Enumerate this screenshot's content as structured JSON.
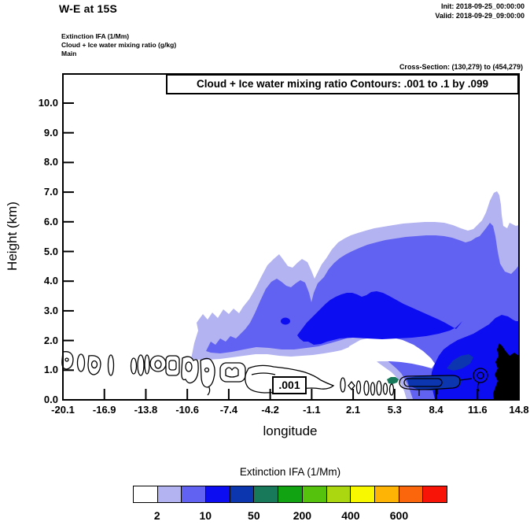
{
  "header": {
    "title": "W-E at 15S",
    "init": "Init: 2018-09-25_00:00:00",
    "valid": "Valid: 2018-09-29_09:00:00",
    "field_line1": "Extinction IFA  (1/Mm)",
    "field_line2": "Cloud + Ice water mixing ratio  (g/kg)",
    "field_line3": "Main",
    "cross_section": "Cross-Section: (130,279) to (454,279)"
  },
  "plot": {
    "contour_title": "Cloud + Ice water mixing ratio Contours: .001 to .1 by .099",
    "contour_label": ".001",
    "xlabel": "longitude",
    "ylabel": "Height (km)",
    "x_ticks": [
      "-20.1",
      "-16.9",
      "-13.8",
      "-10.6",
      "-7.4",
      "-4.2",
      "-1.1",
      "2.1",
      "5.3",
      "8.4",
      "11.6",
      "14.8"
    ],
    "y_ticks": [
      "0.0",
      "1.0",
      "2.0",
      "3.0",
      "4.0",
      "5.0",
      "6.0",
      "7.0",
      "8.0",
      "9.0",
      "10.0"
    ]
  },
  "colorbar": {
    "title": "Extinction IFA  (1/Mm)",
    "labels": [
      "2",
      "10",
      "50",
      "200",
      "400",
      "600"
    ],
    "label_boundary_indices": [
      1,
      3,
      5,
      7,
      9,
      11
    ],
    "colors": [
      "#ffffff",
      "#b3b3f1",
      "#6262f2",
      "#0d0df2",
      "#0c35b0",
      "#17785a",
      "#12a312",
      "#55c20e",
      "#aad70f",
      "#f8f800",
      "#fdb405",
      "#fb650c",
      "#f91408"
    ]
  },
  "chart_data": {
    "type": "heatmap",
    "subtype": "filled-contour vertical cross-section with line contours",
    "title": "Cloud + Ice water mixing ratio Contours: .001 to .1 by .099",
    "x_axis": {
      "label": "longitude",
      "tick_values": [
        -20.1,
        -16.9,
        -13.8,
        -10.6,
        -7.4,
        -4.2,
        -1.1,
        2.1,
        5.3,
        8.4,
        11.6,
        14.8
      ],
      "range": [
        -20.1,
        14.8
      ]
    },
    "y_axis": {
      "label": "Height (km)",
      "tick_values": [
        0,
        1,
        2,
        3,
        4,
        5,
        6,
        7,
        8,
        9,
        10
      ],
      "range": [
        0,
        11
      ]
    },
    "fill_variable": {
      "name": "Extinction IFA (1/Mm)",
      "colorbar_labels": [
        2,
        10,
        50,
        200,
        400,
        600
      ],
      "n_bins": 13
    },
    "line_contour_variable": {
      "name": "Cloud + Ice water mixing ratio (g/kg)",
      "levels": [
        0.001,
        0.1
      ],
      "labeled_value": 0.001
    },
    "features": [
      {
        "name": "elevated aerosol/cloud extinction layer",
        "approx_lon_range": [
          -10,
          14.8
        ],
        "approx_height_km": [
          1.5,
          6.0
        ],
        "extinction_1_per_Mm": "2-10 outer, 10-50 inner"
      },
      {
        "name": "dense blue core >50 1/Mm",
        "approx_lon_range": [
          -3,
          9
        ],
        "approx_height_km": [
          2.1,
          3.7
        ]
      },
      {
        "name": "top of plume peak ~7 km",
        "approx_lon": 13.2
      },
      {
        "name": "near-surface maximum with 200-600 1/Mm (navy/green) patches",
        "approx_lon_range": [
          4.5,
          8.5
        ],
        "approx_height_km": [
          0.2,
          1.4
        ]
      },
      {
        "name": "off-scale black region at surface",
        "approx_lon_range": [
          12.5,
          14.8
        ],
        "approx_height_km": [
          0,
          1.9
        ]
      },
      {
        "name": ".001 g/kg shallow cloud line contours",
        "approx_lon_range": [
          -20.1,
          2
        ],
        "approx_height_km": [
          0.2,
          1.6
        ]
      }
    ],
    "legend_position": "bottom",
    "grid": false
  }
}
